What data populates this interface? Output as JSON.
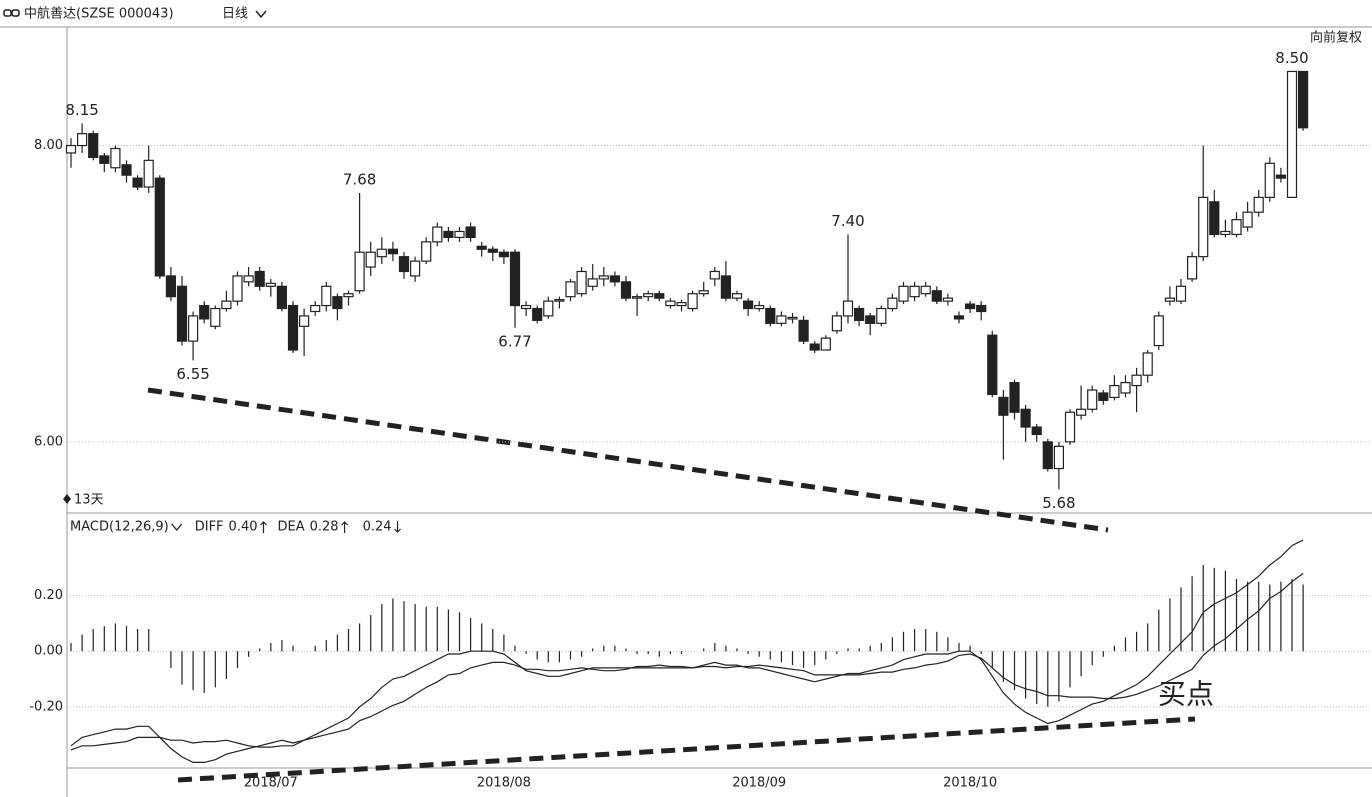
{
  "chart_data": [
    {
      "type": "candlestick",
      "title": "中航善达(SZSE 000043)",
      "period": "日线",
      "adjust": "向前复权",
      "countdown": "13天",
      "categories": [
        null,
        null,
        null,
        null,
        null,
        null,
        null,
        null,
        null,
        null,
        null,
        null,
        null,
        null,
        null,
        null,
        null,
        null,
        "2018/07",
        null,
        null,
        null,
        null,
        null,
        null,
        null,
        null,
        null,
        null,
        null,
        null,
        null,
        null,
        null,
        null,
        null,
        null,
        null,
        null,
        "2018/08",
        null,
        null,
        null,
        null,
        null,
        null,
        null,
        null,
        null,
        null,
        null,
        null,
        null,
        null,
        null,
        null,
        null,
        null,
        null,
        null,
        null,
        null,
        "2018/09",
        null,
        null,
        null,
        null,
        null,
        null,
        null,
        null,
        null,
        null,
        null,
        null,
        null,
        null,
        null,
        null,
        null,
        null,
        "2018/10",
        null,
        null,
        null,
        null,
        null,
        null,
        null,
        null,
        null,
        null,
        null,
        null,
        null,
        null,
        null,
        null,
        null,
        null,
        null,
        null,
        null,
        null,
        null,
        null,
        null,
        null,
        null,
        null,
        null,
        null
      ],
      "open": [
        7.95,
        8.0,
        8.08,
        7.93,
        7.85,
        7.87,
        7.78,
        7.72,
        7.78,
        7.12,
        7.05,
        6.68,
        6.92,
        6.78,
        6.9,
        6.95,
        7.08,
        7.15,
        7.05,
        7.05,
        6.92,
        6.78,
        6.88,
        6.92,
        6.98,
        6.98,
        7.02,
        7.18,
        7.25,
        7.3,
        7.25,
        7.12,
        7.22,
        7.35,
        7.42,
        7.38,
        7.45,
        7.32,
        7.3,
        7.28,
        7.28,
        6.9,
        6.9,
        6.85,
        6.95,
        6.98,
        7.0,
        7.05,
        7.1,
        7.12,
        7.08,
        6.97,
        6.98,
        7.0,
        6.92,
        6.92,
        6.9,
        7.0,
        7.1,
        7.12,
        6.97,
        6.95,
        6.9,
        6.9,
        6.8,
        6.83,
        6.82,
        6.66,
        6.62,
        6.75,
        6.85,
        6.9,
        6.85,
        6.8,
        6.9,
        6.95,
        6.98,
        7.0,
        7.02,
        6.95,
        6.85,
        6.93,
        6.92,
        6.72,
        6.3,
        6.4,
        6.22,
        6.1,
        6.0,
        5.82,
        6.0,
        6.18,
        6.22,
        6.33,
        6.3,
        6.33,
        6.38,
        6.45,
        6.65,
        6.95,
        6.95,
        7.1,
        7.25,
        7.62,
        7.4,
        7.4,
        7.45,
        7.55,
        7.65,
        7.8,
        7.65,
        8.5
      ],
      "high": [
        8.05,
        8.15,
        8.1,
        7.95,
        8.0,
        7.9,
        7.8,
        8.0,
        7.8,
        7.18,
        7.12,
        6.88,
        6.95,
        6.92,
        7.02,
        7.15,
        7.18,
        7.18,
        7.1,
        7.08,
        6.95,
        6.9,
        6.95,
        7.08,
        7.0,
        7.02,
        7.68,
        7.35,
        7.38,
        7.35,
        7.28,
        7.25,
        7.38,
        7.48,
        7.45,
        7.45,
        7.48,
        7.35,
        7.32,
        7.3,
        7.3,
        6.95,
        6.92,
        6.98,
        6.98,
        7.1,
        7.18,
        7.2,
        7.18,
        7.15,
        7.12,
        7.0,
        7.02,
        7.02,
        6.97,
        6.96,
        7.02,
        7.08,
        7.18,
        7.22,
        7.02,
        6.97,
        6.95,
        6.92,
        6.88,
        6.87,
        6.85,
        6.68,
        6.72,
        6.88,
        7.4,
        6.92,
        6.87,
        6.92,
        7.0,
        7.08,
        7.08,
        7.08,
        7.05,
        7.0,
        6.88,
        6.95,
        6.95,
        6.75,
        6.35,
        6.42,
        6.25,
        6.12,
        6.02,
        6.0,
        6.22,
        6.38,
        6.38,
        6.35,
        6.45,
        6.45,
        6.5,
        6.62,
        6.88,
        7.05,
        7.1,
        7.28,
        8.0,
        7.7,
        7.5,
        7.55,
        7.62,
        7.7,
        7.92,
        7.85,
        8.5,
        8.5
      ],
      "low": [
        7.85,
        7.95,
        7.9,
        7.82,
        7.82,
        7.75,
        7.7,
        7.68,
        7.1,
        6.95,
        6.65,
        6.55,
        6.8,
        6.76,
        6.88,
        6.92,
        7.05,
        7.02,
        6.98,
        6.88,
        6.6,
        6.58,
        6.85,
        6.88,
        6.82,
        6.92,
        7.0,
        7.12,
        7.2,
        7.22,
        7.1,
        7.08,
        7.2,
        7.32,
        7.35,
        7.35,
        7.35,
        7.25,
        7.22,
        7.2,
        6.77,
        6.85,
        6.8,
        6.83,
        6.9,
        6.95,
        6.98,
        7.02,
        7.05,
        7.05,
        6.95,
        6.85,
        6.95,
        6.95,
        6.9,
        6.88,
        6.88,
        6.98,
        7.05,
        6.95,
        6.95,
        6.85,
        6.88,
        6.78,
        6.78,
        6.8,
        6.66,
        6.6,
        6.62,
        6.73,
        6.8,
        6.78,
        6.72,
        6.78,
        6.88,
        6.93,
        6.95,
        6.98,
        6.93,
        6.92,
        6.8,
        6.87,
        6.82,
        6.3,
        5.88,
        6.15,
        6.0,
        6.0,
        5.8,
        5.68,
        5.98,
        6.15,
        6.2,
        6.25,
        6.28,
        6.3,
        6.2,
        6.4,
        6.62,
        6.92,
        6.93,
        7.08,
        7.22,
        7.38,
        7.38,
        7.38,
        7.42,
        7.52,
        7.62,
        7.75,
        7.65,
        8.1
      ],
      "close": [
        8.0,
        8.08,
        7.92,
        7.88,
        7.98,
        7.8,
        7.72,
        7.9,
        7.12,
        6.98,
        6.68,
        6.85,
        6.83,
        6.9,
        6.95,
        7.12,
        7.12,
        7.05,
        7.07,
        6.9,
        6.62,
        6.85,
        6.92,
        7.05,
        6.9,
        7.0,
        7.28,
        7.28,
        7.3,
        7.27,
        7.15,
        7.22,
        7.35,
        7.45,
        7.38,
        7.42,
        7.38,
        7.3,
        7.28,
        7.25,
        6.92,
        6.92,
        6.82,
        6.95,
        6.96,
        7.08,
        7.15,
        7.1,
        7.12,
        7.08,
        6.97,
        6.98,
        7.0,
        6.97,
        6.95,
        6.94,
        7.0,
        7.02,
        7.15,
        6.97,
        7.0,
        6.9,
        6.92,
        6.8,
        6.85,
        6.84,
        6.68,
        6.62,
        6.7,
        6.85,
        6.95,
        6.82,
        6.8,
        6.9,
        6.97,
        7.05,
        7.05,
        7.05,
        6.95,
        6.97,
        6.83,
        6.9,
        6.88,
        6.32,
        6.18,
        6.2,
        6.1,
        6.05,
        5.82,
        5.97,
        6.2,
        6.22,
        6.35,
        6.28,
        6.38,
        6.4,
        6.45,
        6.6,
        6.85,
        6.97,
        7.05,
        7.25,
        7.65,
        7.4,
        7.42,
        7.5,
        7.55,
        7.65,
        7.88,
        7.78,
        8.5,
        8.12
      ],
      "high_labels": [
        {
          "value": 8.15,
          "label": "8.15"
        },
        {
          "value": 7.68,
          "label": "7.68"
        },
        {
          "value": 7.4,
          "label": "7.40"
        },
        {
          "value": 8.5,
          "label": "8.50"
        }
      ],
      "low_labels": [
        {
          "value": 6.55,
          "label": "6.55"
        },
        {
          "value": 6.77,
          "label": "6.77"
        },
        {
          "value": 5.68,
          "label": "5.68"
        }
      ],
      "color": "#222222",
      "ylim": [
        5.52,
        8.8
      ],
      "yticks": [
        {
          "value": 6,
          "label": "6.00"
        },
        {
          "value": 8,
          "label": "8.00"
        }
      ],
      "grid": true
    },
    {
      "type": "macd",
      "title": "MACD(12,26,9)",
      "annotation": "买点",
      "histogram": {
        "trend": "down",
        "last": {
          "value": 0.24,
          "label": "0.24"
        },
        "values": [
          0.03,
          0.06,
          0.08,
          0.09,
          0.1,
          0.09,
          0.08,
          0.08,
          0.0,
          -0.06,
          -0.12,
          -0.14,
          -0.15,
          -0.13,
          -0.1,
          -0.06,
          -0.02,
          0.01,
          0.03,
          0.04,
          0.02,
          0.0,
          0.02,
          0.04,
          0.06,
          0.08,
          0.1,
          0.13,
          0.17,
          0.19,
          0.18,
          0.17,
          0.16,
          0.16,
          0.15,
          0.14,
          0.12,
          0.1,
          0.08,
          0.06,
          0.02,
          -0.01,
          -0.03,
          -0.04,
          -0.04,
          -0.03,
          -0.02,
          0.01,
          0.02,
          0.02,
          0.01,
          -0.01,
          -0.01,
          -0.02,
          -0.01,
          -0.01,
          0.0,
          0.01,
          0.03,
          0.02,
          0.01,
          -0.01,
          -0.02,
          -0.03,
          -0.04,
          -0.05,
          -0.06,
          -0.05,
          -0.03,
          -0.01,
          0.01,
          0.01,
          0.02,
          0.03,
          0.05,
          0.07,
          0.08,
          0.08,
          0.07,
          0.05,
          0.03,
          0.02,
          -0.01,
          -0.06,
          -0.11,
          -0.14,
          -0.17,
          -0.19,
          -0.2,
          -0.18,
          -0.13,
          -0.09,
          -0.05,
          -0.02,
          0.02,
          0.05,
          0.07,
          0.1,
          0.15,
          0.19,
          0.23,
          0.27,
          0.31,
          0.3,
          0.29,
          0.26,
          0.25,
          0.25,
          0.24,
          0.25,
          0.26,
          0.24
        ]
      },
      "series": [
        {
          "name": "DIFF",
          "color": "#222222",
          "trend": "up",
          "last": {
            "value": 0.4,
            "label": "0.40"
          },
          "values": [
            -0.34,
            -0.31,
            -0.3,
            -0.29,
            -0.28,
            -0.28,
            -0.27,
            -0.27,
            -0.31,
            -0.35,
            -0.38,
            -0.4,
            -0.4,
            -0.39,
            -0.37,
            -0.36,
            -0.35,
            -0.34,
            -0.33,
            -0.32,
            -0.33,
            -0.32,
            -0.3,
            -0.28,
            -0.26,
            -0.24,
            -0.2,
            -0.17,
            -0.13,
            -0.1,
            -0.09,
            -0.07,
            -0.05,
            -0.03,
            -0.01,
            -0.01,
            0.0,
            0.0,
            0.0,
            -0.01,
            -0.04,
            -0.07,
            -0.08,
            -0.09,
            -0.09,
            -0.08,
            -0.07,
            -0.06,
            -0.06,
            -0.06,
            -0.06,
            -0.06,
            -0.06,
            -0.06,
            -0.06,
            -0.06,
            -0.06,
            -0.05,
            -0.04,
            -0.05,
            -0.05,
            -0.06,
            -0.06,
            -0.07,
            -0.08,
            -0.09,
            -0.1,
            -0.11,
            -0.1,
            -0.09,
            -0.08,
            -0.08,
            -0.07,
            -0.06,
            -0.05,
            -0.03,
            -0.02,
            -0.01,
            -0.01,
            -0.01,
            0.0,
            0.0,
            -0.03,
            -0.09,
            -0.15,
            -0.19,
            -0.22,
            -0.24,
            -0.26,
            -0.25,
            -0.23,
            -0.21,
            -0.19,
            -0.18,
            -0.16,
            -0.14,
            -0.12,
            -0.09,
            -0.05,
            -0.01,
            0.03,
            0.07,
            0.14,
            0.17,
            0.19,
            0.21,
            0.24,
            0.27,
            0.31,
            0.34,
            0.38,
            0.4
          ]
        },
        {
          "name": "DEA",
          "color": "#222222",
          "trend": "up",
          "last": {
            "value": 0.28,
            "label": "0.28"
          },
          "values": [
            -0.355,
            -0.34,
            -0.34,
            -0.335,
            -0.33,
            -0.325,
            -0.31,
            -0.31,
            -0.31,
            -0.32,
            -0.32,
            -0.33,
            -0.325,
            -0.325,
            -0.32,
            -0.33,
            -0.34,
            -0.345,
            -0.345,
            -0.34,
            -0.34,
            -0.32,
            -0.31,
            -0.3,
            -0.29,
            -0.28,
            -0.25,
            -0.235,
            -0.215,
            -0.195,
            -0.18,
            -0.155,
            -0.13,
            -0.11,
            -0.085,
            -0.08,
            -0.06,
            -0.05,
            -0.04,
            -0.04,
            -0.05,
            -0.065,
            -0.065,
            -0.07,
            -0.07,
            -0.065,
            -0.06,
            -0.065,
            -0.07,
            -0.07,
            -0.065,
            -0.055,
            -0.055,
            -0.05,
            -0.055,
            -0.055,
            -0.06,
            -0.055,
            -0.055,
            -0.06,
            -0.055,
            -0.055,
            -0.05,
            -0.055,
            -0.06,
            -0.065,
            -0.07,
            -0.085,
            -0.085,
            -0.085,
            -0.085,
            -0.085,
            -0.08,
            -0.075,
            -0.075,
            -0.065,
            -0.06,
            -0.05,
            -0.045,
            -0.035,
            -0.015,
            -0.01,
            -0.025,
            -0.06,
            -0.095,
            -0.12,
            -0.135,
            -0.145,
            -0.16,
            -0.16,
            -0.165,
            -0.165,
            -0.165,
            -0.17,
            -0.17,
            -0.165,
            -0.155,
            -0.14,
            -0.125,
            -0.105,
            -0.085,
            -0.065,
            -0.015,
            0.02,
            0.045,
            0.08,
            0.115,
            0.145,
            0.19,
            0.215,
            0.25,
            0.28
          ]
        }
      ],
      "ylim": [
        -0.42,
        0.49
      ],
      "yticks": [
        {
          "value": -0.2,
          "label": "-0.20"
        },
        {
          "value": 0,
          "label": "0.00"
        },
        {
          "value": 0.2,
          "label": "0.20"
        }
      ],
      "grid": true
    }
  ]
}
